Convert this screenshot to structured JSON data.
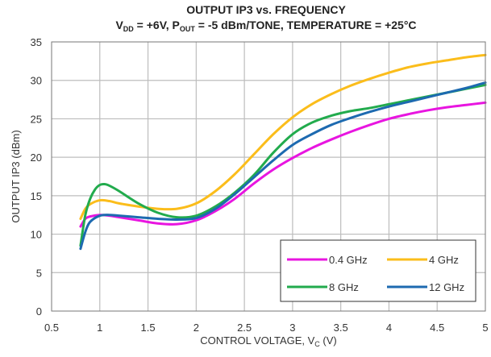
{
  "chart_data": {
    "type": "line",
    "title": "OUTPUT IP3 vs. FREQUENCY",
    "subtitle": {
      "vdd_main": "V",
      "vdd_sub": "DD",
      "vdd_value": " = +6V, P",
      "pout_sub": "OUT",
      "rest": " = -5 dBm/TONE, TEMPERATURE = +25°C"
    },
    "xlabel": {
      "main": "CONTROL VOLTAGE, V",
      "sub": "C",
      "unit": " (V)"
    },
    "ylabel": "OUTPUT IP3 (dBm)",
    "xlim": [
      0.5,
      5
    ],
    "ylim": [
      0,
      35
    ],
    "xticks": [
      0.5,
      1,
      1.5,
      2,
      2.5,
      3,
      3.5,
      4,
      4.5,
      5
    ],
    "xtick_labels": [
      "0.5",
      "1",
      "1.5",
      "2",
      "2.5",
      "3",
      "3.5",
      "4",
      "4.5",
      "5"
    ],
    "yticks": [
      0,
      5,
      10,
      15,
      20,
      25,
      30,
      35
    ],
    "ytick_labels": [
      "0",
      "5",
      "10",
      "15",
      "20",
      "25",
      "30",
      "35"
    ],
    "grid": true,
    "legend_position": "bottom-right",
    "series": [
      {
        "name": "0.4 GHz",
        "color": "#E815E0",
        "points": [
          [
            0.8,
            11.0
          ],
          [
            0.85,
            12.0
          ],
          [
            0.9,
            12.3
          ],
          [
            1.0,
            12.5
          ],
          [
            1.1,
            12.4
          ],
          [
            1.2,
            12.2
          ],
          [
            1.4,
            11.8
          ],
          [
            1.6,
            11.4
          ],
          [
            1.8,
            11.3
          ],
          [
            2.0,
            11.8
          ],
          [
            2.2,
            13.0
          ],
          [
            2.4,
            14.6
          ],
          [
            2.6,
            16.6
          ],
          [
            2.8,
            18.4
          ],
          [
            3.0,
            19.9
          ],
          [
            3.2,
            21.2
          ],
          [
            3.4,
            22.3
          ],
          [
            3.6,
            23.3
          ],
          [
            3.8,
            24.2
          ],
          [
            4.0,
            25.0
          ],
          [
            4.2,
            25.6
          ],
          [
            4.4,
            26.1
          ],
          [
            4.6,
            26.5
          ],
          [
            4.8,
            26.8
          ],
          [
            5.0,
            27.1
          ]
        ]
      },
      {
        "name": "4 GHz",
        "color": "#FBBD1B",
        "points": [
          [
            0.8,
            12.0
          ],
          [
            0.85,
            13.3
          ],
          [
            0.9,
            13.9
          ],
          [
            1.0,
            14.4
          ],
          [
            1.1,
            14.3
          ],
          [
            1.2,
            14.0
          ],
          [
            1.4,
            13.6
          ],
          [
            1.6,
            13.3
          ],
          [
            1.8,
            13.3
          ],
          [
            2.0,
            14.0
          ],
          [
            2.2,
            15.6
          ],
          [
            2.4,
            17.8
          ],
          [
            2.6,
            20.4
          ],
          [
            2.8,
            23.0
          ],
          [
            3.0,
            25.2
          ],
          [
            3.2,
            26.9
          ],
          [
            3.4,
            28.2
          ],
          [
            3.6,
            29.3
          ],
          [
            3.8,
            30.2
          ],
          [
            4.0,
            31.0
          ],
          [
            4.2,
            31.7
          ],
          [
            4.4,
            32.2
          ],
          [
            4.6,
            32.6
          ],
          [
            4.8,
            33.0
          ],
          [
            5.0,
            33.3
          ]
        ]
      },
      {
        "name": "8 GHz",
        "color": "#22AB4D",
        "points": [
          [
            0.8,
            8.5
          ],
          [
            0.85,
            12.5
          ],
          [
            0.9,
            14.6
          ],
          [
            0.95,
            15.8
          ],
          [
            1.0,
            16.4
          ],
          [
            1.05,
            16.5
          ],
          [
            1.1,
            16.3
          ],
          [
            1.2,
            15.6
          ],
          [
            1.4,
            14.0
          ],
          [
            1.6,
            12.8
          ],
          [
            1.8,
            12.2
          ],
          [
            2.0,
            12.4
          ],
          [
            2.2,
            13.6
          ],
          [
            2.4,
            15.4
          ],
          [
            2.6,
            17.7
          ],
          [
            2.8,
            20.6
          ],
          [
            3.0,
            23.0
          ],
          [
            3.2,
            24.5
          ],
          [
            3.4,
            25.4
          ],
          [
            3.6,
            26.0
          ],
          [
            3.8,
            26.4
          ],
          [
            4.0,
            26.9
          ],
          [
            4.2,
            27.4
          ],
          [
            4.4,
            27.9
          ],
          [
            4.6,
            28.4
          ],
          [
            4.8,
            28.9
          ],
          [
            5.0,
            29.4
          ]
        ]
      },
      {
        "name": "12 GHz",
        "color": "#1D6AB0",
        "points": [
          [
            0.8,
            8.1
          ],
          [
            0.85,
            10.3
          ],
          [
            0.9,
            11.6
          ],
          [
            1.0,
            12.4
          ],
          [
            1.1,
            12.5
          ],
          [
            1.2,
            12.4
          ],
          [
            1.4,
            12.2
          ],
          [
            1.6,
            12.0
          ],
          [
            1.8,
            11.9
          ],
          [
            2.0,
            12.1
          ],
          [
            2.2,
            13.3
          ],
          [
            2.4,
            15.2
          ],
          [
            2.6,
            17.4
          ],
          [
            2.8,
            19.6
          ],
          [
            3.0,
            21.6
          ],
          [
            3.2,
            23.0
          ],
          [
            3.4,
            24.2
          ],
          [
            3.6,
            25.1
          ],
          [
            3.8,
            25.9
          ],
          [
            4.0,
            26.6
          ],
          [
            4.2,
            27.2
          ],
          [
            4.4,
            27.8
          ],
          [
            4.6,
            28.4
          ],
          [
            4.8,
            29.0
          ],
          [
            5.0,
            29.7
          ]
        ]
      }
    ]
  }
}
